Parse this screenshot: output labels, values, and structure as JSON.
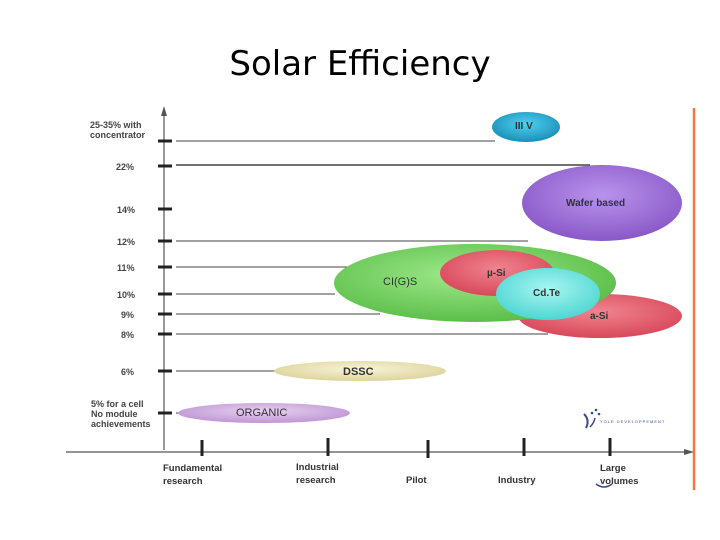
{
  "title": "Solar Efficiency",
  "y_levels": [
    {
      "label": "25-35% with\nconcentrator"
    },
    {
      "label": "22%"
    },
    {
      "label": "14%"
    },
    {
      "label": "12%"
    },
    {
      "label": "11%"
    },
    {
      "label": "10%"
    },
    {
      "label": "9%"
    },
    {
      "label": "8%"
    },
    {
      "label": "6%"
    },
    {
      "label": "5% for a cell\nNo module\nachievements"
    }
  ],
  "x_stages": [
    {
      "label": "Fundamental\nresearch"
    },
    {
      "label": "Industrial\nresearch"
    },
    {
      "label": "Pilot"
    },
    {
      "label": "Industry"
    },
    {
      "label": "Large\nvolumes"
    }
  ],
  "technologies": [
    {
      "name": "III V",
      "color": "#1fa3c8"
    },
    {
      "name": "Wafer based",
      "color": "#9b6bd6"
    },
    {
      "name": "CI(G)S",
      "color": "#6ccf5a"
    },
    {
      "name": "µ-Si",
      "color": "#e0556a"
    },
    {
      "name": "Cd.Te",
      "color": "#5fe0dc"
    },
    {
      "name": "a-Si",
      "color": "#e0556a"
    },
    {
      "name": "DSSC",
      "color": "#e8e0a8"
    },
    {
      "name": "ORGANIC",
      "color": "#c9a6dc"
    }
  ],
  "logo_text": "YOLE DEVELOPPEMENT",
  "colors": {
    "axis": "#333333",
    "right_border": "#f07a30"
  }
}
